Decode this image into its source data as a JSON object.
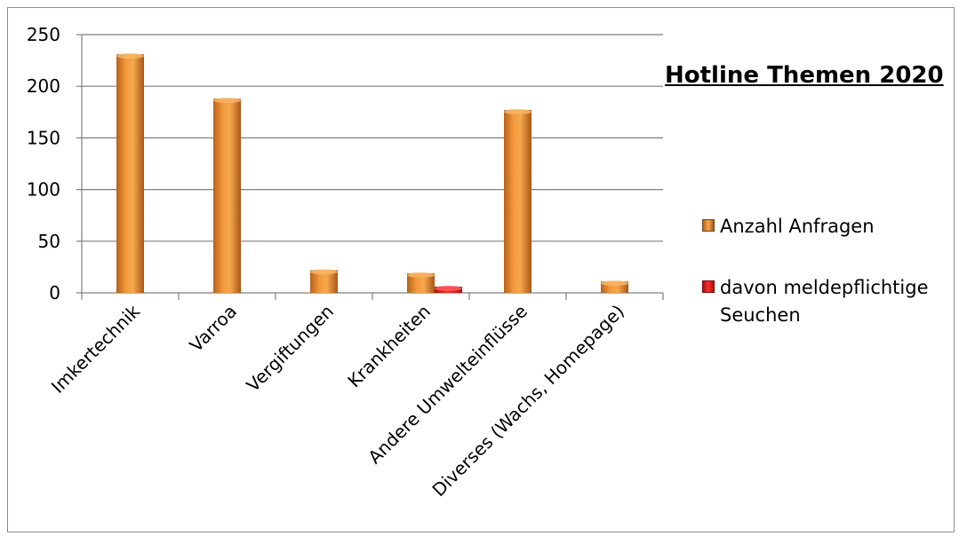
{
  "chart_data": {
    "type": "bar",
    "title": "Hotline Themen 2020",
    "categories": [
      "Imkertechnik",
      "Varroa",
      "Vergiftungen",
      "Krankheiten",
      "Andere Umwelteinflüsse",
      "Diverses (Wachs, Homepage)"
    ],
    "series": [
      {
        "name": "Anzahl Anfragen",
        "values": [
          231,
          188,
          22,
          19,
          177,
          11
        ],
        "color": "#e8892a"
      },
      {
        "name": "davon meldepflichtige Seuchen",
        "values": [
          0,
          0,
          0,
          6,
          0,
          0
        ],
        "color": "#e02020"
      }
    ],
    "ylim": [
      0,
      250
    ],
    "yticks": [
      0,
      50,
      100,
      150,
      200,
      250
    ],
    "grid": true,
    "legend_position": "right"
  }
}
